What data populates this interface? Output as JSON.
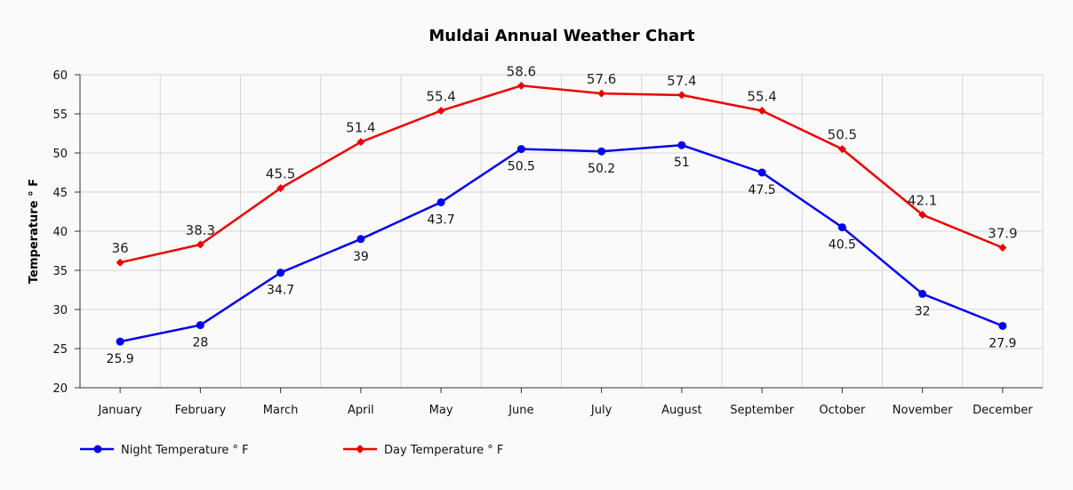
{
  "chart_data": {
    "type": "line",
    "title": "Muldai Annual Weather Chart",
    "xlabel": "",
    "ylabel": "Temperature ° F",
    "ylim": [
      20,
      60
    ],
    "yticks": [
      20,
      25,
      30,
      35,
      40,
      45,
      50,
      55,
      60
    ],
    "grid": true,
    "legend_position": "bottom-left",
    "categories": [
      "January",
      "February",
      "March",
      "April",
      "May",
      "June",
      "July",
      "August",
      "September",
      "October",
      "November",
      "December"
    ],
    "series": [
      {
        "name": "Night Temperature ° F",
        "color": "#0000ee",
        "marker": "circle",
        "values": [
          25.9,
          28,
          34.7,
          39,
          43.7,
          50.5,
          50.2,
          51,
          47.5,
          40.5,
          32,
          27.9
        ],
        "labels": [
          "25.9",
          "28",
          "34.7",
          "39",
          "43.7",
          "50.5",
          "50.2",
          "51",
          "47.5",
          "40.5",
          "32",
          "27.9"
        ]
      },
      {
        "name": "Day Temperature ° F",
        "color": "#ee0000",
        "marker": "diamond",
        "values": [
          36,
          38.3,
          45.5,
          51.4,
          55.4,
          58.6,
          57.6,
          57.4,
          55.4,
          50.5,
          42.1,
          37.9
        ],
        "labels": [
          "36",
          "38.3",
          "45.5",
          "51.4",
          "55.4",
          "58.6",
          "57.6",
          "57.4",
          "55.4",
          "50.5",
          "42.1",
          "37.9"
        ]
      }
    ]
  }
}
